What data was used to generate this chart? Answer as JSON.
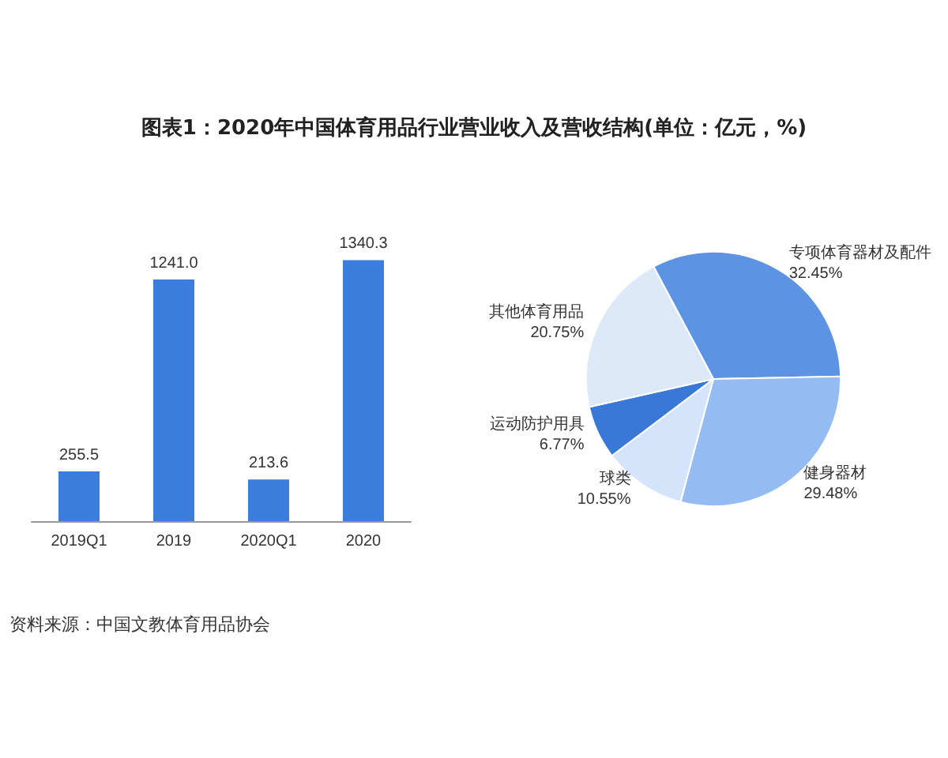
{
  "chart_data": [
    {
      "type": "bar",
      "title": "图表1：2020年中国体育用品行业营业收入及营收结构(单位：亿元，%)",
      "categories": [
        "2019Q1",
        "2019",
        "2020Q1",
        "2020"
      ],
      "values": [
        255.5,
        1241.0,
        213.6,
        1340.3
      ],
      "value_labels": [
        "255.5",
        "1241.0",
        "213.6",
        "1340.3"
      ],
      "color": "#3b7ddd",
      "legend": false,
      "annotations": [
        "资料来源：中国文教体育用品协会"
      ]
    },
    {
      "type": "pie",
      "categories": [
        "专项体育器材及配件",
        "健身器材",
        "球类",
        "运动防护用具",
        "其他体育用品"
      ],
      "values": [
        32.45,
        29.48,
        10.55,
        6.77,
        20.75
      ],
      "value_labels": [
        "32.45%",
        "29.48%",
        "10.55%",
        "6.77%",
        "20.75%"
      ],
      "colors": [
        "#5d93e3",
        "#94bcf2",
        "#d4e5fb",
        "#3a78d8",
        "#dce9f9"
      ],
      "legend": false
    }
  ]
}
